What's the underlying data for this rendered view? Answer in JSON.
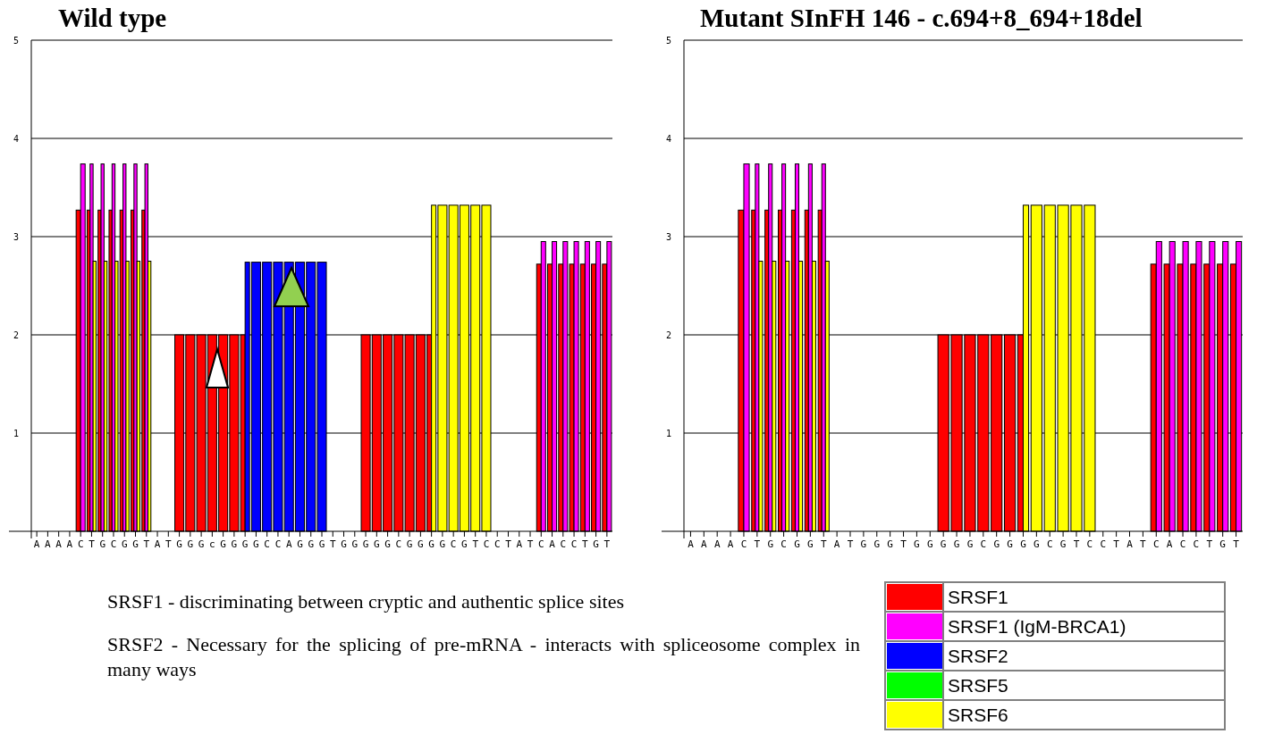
{
  "chart_data": [
    {
      "type": "bar",
      "title": "Wild type",
      "categories": [
        "A",
        "A",
        "A",
        "A",
        "C",
        "T",
        "G",
        "C",
        "G",
        "G",
        "T",
        "A",
        "T",
        "G",
        "G",
        "G",
        "c",
        "G",
        "G",
        "G",
        "G",
        "C",
        "C",
        "A",
        "G",
        "G",
        "G",
        "T",
        "G",
        "G",
        "G",
        "G",
        "G",
        "C",
        "G",
        "G",
        "G",
        "G",
        "C",
        "G",
        "T",
        "C",
        "C",
        "T",
        "A",
        "T",
        "C",
        "A",
        "C",
        "C",
        "T",
        "G",
        "T"
      ],
      "series": [
        {
          "color": "#ff0000",
          "values": [
            null,
            null,
            null,
            null,
            3.27,
            3.27,
            3.27,
            3.27,
            3.27,
            3.27,
            3.27,
            null,
            null,
            2.0,
            2.0,
            2.0,
            2.0,
            2.0,
            2.0,
            2.0,
            null,
            null,
            null,
            null,
            null,
            null,
            null,
            null,
            null,
            null,
            2.0,
            2.0,
            2.0,
            2.0,
            2.0,
            2.0,
            2.0,
            null,
            null,
            null,
            null,
            null,
            null,
            null,
            null,
            null,
            2.72,
            2.72,
            2.72,
            2.72,
            2.72,
            2.72,
            2.72
          ]
        },
        {
          "color": "#ff00ff",
          "values": [
            null,
            null,
            null,
            null,
            3.74,
            3.74,
            3.74,
            3.74,
            3.74,
            3.74,
            3.74,
            null,
            null,
            null,
            null,
            null,
            null,
            null,
            null,
            null,
            null,
            null,
            null,
            null,
            null,
            null,
            null,
            null,
            null,
            null,
            null,
            null,
            null,
            null,
            null,
            null,
            null,
            null,
            null,
            null,
            null,
            null,
            null,
            null,
            null,
            null,
            2.95,
            2.95,
            2.95,
            2.95,
            2.95,
            2.95,
            2.95
          ]
        },
        {
          "color": "#0000ff",
          "values": [
            null,
            null,
            null,
            null,
            null,
            null,
            null,
            null,
            null,
            null,
            null,
            null,
            null,
            null,
            null,
            null,
            null,
            null,
            null,
            2.74,
            2.74,
            2.74,
            2.74,
            2.74,
            2.74,
            2.74,
            2.74,
            null,
            null,
            null,
            null,
            null,
            null,
            null,
            null,
            null,
            null,
            null,
            null,
            null,
            null,
            null,
            null,
            null,
            null,
            null,
            null,
            null,
            null,
            null,
            null,
            null,
            null
          ]
        },
        {
          "color": "#ffff00",
          "values": [
            null,
            null,
            null,
            null,
            null,
            2.75,
            2.75,
            2.75,
            2.75,
            2.75,
            2.75,
            null,
            null,
            null,
            null,
            null,
            null,
            null,
            null,
            null,
            null,
            null,
            null,
            null,
            null,
            null,
            null,
            null,
            null,
            null,
            null,
            null,
            null,
            null,
            null,
            null,
            3.32,
            3.32,
            3.32,
            3.32,
            3.32,
            3.32,
            null,
            null,
            null,
            null,
            null,
            null,
            null,
            null,
            null,
            null,
            null
          ]
        }
      ],
      "ylim": [
        0,
        5
      ],
      "yticks": [
        1,
        2,
        3,
        4,
        5
      ],
      "grid": "y",
      "annotations": [
        "SRSF1 - discriminating between cryptic and authentic splice sites",
        "SRSF2 - Necessary for the splicing of pre-mRNA - interacts with spliceosome complex in many ways"
      ]
    },
    {
      "type": "bar",
      "title": "Mutant SInFH 146 - c.694+8_694+18del",
      "categories": [
        "A",
        "A",
        "A",
        "A",
        "C",
        "T",
        "G",
        "C",
        "G",
        "G",
        "T",
        "A",
        "T",
        "G",
        "G",
        "G",
        "T",
        "G",
        "G",
        "G",
        "G",
        "G",
        "C",
        "G",
        "G",
        "G",
        "G",
        "C",
        "G",
        "T",
        "C",
        "C",
        "T",
        "A",
        "T",
        "C",
        "A",
        "C",
        "C",
        "T",
        "G",
        "T"
      ],
      "series": [
        {
          "name": "SRSF1",
          "color": "#ff0000",
          "values": [
            null,
            null,
            null,
            null,
            3.27,
            3.27,
            3.27,
            3.27,
            3.27,
            3.27,
            3.27,
            null,
            null,
            null,
            null,
            null,
            null,
            null,
            null,
            2.0,
            2.0,
            2.0,
            2.0,
            2.0,
            2.0,
            2.0,
            null,
            null,
            null,
            null,
            null,
            null,
            null,
            null,
            null,
            2.72,
            2.72,
            2.72,
            2.72,
            2.72,
            2.72,
            2.72
          ]
        },
        {
          "name": "SRSF1 (IgM-BRCA1)",
          "color": "#ff00ff",
          "values": [
            null,
            null,
            null,
            null,
            3.74,
            3.74,
            3.74,
            3.74,
            3.74,
            3.74,
            3.74,
            null,
            null,
            null,
            null,
            null,
            null,
            null,
            null,
            null,
            null,
            null,
            null,
            null,
            null,
            null,
            null,
            null,
            null,
            null,
            null,
            null,
            null,
            null,
            null,
            2.95,
            2.95,
            2.95,
            2.95,
            2.95,
            2.95,
            2.95
          ]
        },
        {
          "name": "SRSF2",
          "color": "#0000ff",
          "values": [
            null,
            null,
            null,
            null,
            null,
            null,
            null,
            null,
            null,
            null,
            null,
            null,
            null,
            null,
            null,
            null,
            null,
            null,
            null,
            null,
            null,
            null,
            null,
            null,
            null,
            null,
            null,
            null,
            null,
            null,
            null,
            null,
            null,
            null,
            null,
            null,
            null,
            null,
            null,
            null,
            null,
            null
          ]
        },
        {
          "name": "SRSF5",
          "color": "#00ff00",
          "values": [
            null,
            null,
            null,
            null,
            null,
            null,
            null,
            null,
            null,
            null,
            null,
            null,
            null,
            null,
            null,
            null,
            null,
            null,
            null,
            null,
            null,
            null,
            null,
            null,
            null,
            null,
            null,
            null,
            null,
            null,
            null,
            null,
            null,
            null,
            null,
            null,
            null,
            null,
            null,
            null,
            null,
            null
          ]
        },
        {
          "name": "SRSF6",
          "color": "#ffff00",
          "values": [
            null,
            null,
            null,
            null,
            null,
            2.75,
            2.75,
            2.75,
            2.75,
            2.75,
            2.75,
            null,
            null,
            null,
            null,
            null,
            null,
            null,
            null,
            null,
            null,
            null,
            null,
            null,
            null,
            3.32,
            3.32,
            3.32,
            3.32,
            3.32,
            3.32,
            null,
            null,
            null,
            null,
            null,
            null,
            null,
            null,
            null,
            null,
            null
          ]
        }
      ],
      "ylim": [
        0,
        5
      ],
      "yticks": [
        1,
        2,
        3,
        4,
        5
      ],
      "grid": "y",
      "legend": "bottom right"
    }
  ]
}
